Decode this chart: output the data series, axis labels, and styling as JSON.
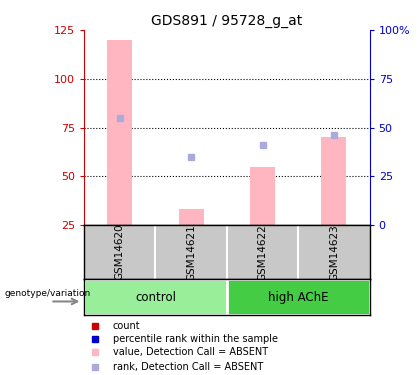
{
  "title": "GDS891 / 95728_g_at",
  "samples": [
    "GSM14620",
    "GSM14621",
    "GSM14622",
    "GSM14623"
  ],
  "group_labels": [
    "control",
    "high AChE"
  ],
  "group_colors": {
    "control": "#99EE99",
    "high AChE": "#44CC44"
  },
  "bar_values": [
    120,
    33,
    55,
    70
  ],
  "bar_color": "#FFB6C1",
  "dot_values": [
    80,
    60,
    66,
    71
  ],
  "dot_color": "#AAAADD",
  "ylim_left": [
    25,
    125
  ],
  "ylim_right": [
    0,
    100
  ],
  "left_ticks": [
    25,
    50,
    75,
    100,
    125
  ],
  "right_ticks": [
    0,
    25,
    50,
    75,
    100
  ],
  "right_tick_labels": [
    "0",
    "25",
    "50",
    "75",
    "100%"
  ],
  "grid_lines": [
    50,
    75,
    100
  ],
  "left_axis_color": "#CC0000",
  "right_axis_color": "#0000CC",
  "bg_color": "#FFFFFF",
  "legend_items": [
    {
      "label": "count",
      "color": "#CC0000"
    },
    {
      "label": "percentile rank within the sample",
      "color": "#0000CC"
    },
    {
      "label": "value, Detection Call = ABSENT",
      "color": "#FFB6C1"
    },
    {
      "label": "rank, Detection Call = ABSENT",
      "color": "#AAAADD"
    }
  ],
  "genotype_label": "genotype/variation",
  "sample_box_color": "#C8C8C8",
  "sample_box_border": "#000000"
}
